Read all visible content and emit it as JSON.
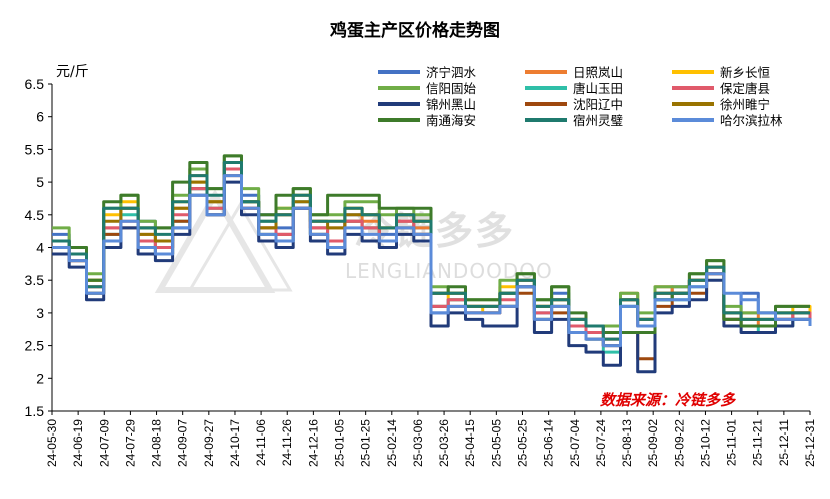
{
  "chart_data": {
    "type": "line",
    "title": "鸡蛋主产区价格走势图",
    "ylabel": "元/斤",
    "ylim": [
      1.5,
      6.5
    ],
    "yticks": [
      "1.5",
      "2",
      "2.5",
      "3",
      "3.5",
      "4",
      "4.5",
      "5",
      "5.5",
      "6",
      "6.5"
    ],
    "x_tick_labels": [
      "24-05-30",
      "24-06-19",
      "24-07-09",
      "24-07-29",
      "24-08-18",
      "24-09-07",
      "24-09-27",
      "24-10-17",
      "24-11-06",
      "24-11-26",
      "24-12-16",
      "25-01-05",
      "25-01-25",
      "25-02-14",
      "25-03-06",
      "25-03-26",
      "25-04-15",
      "25-05-05",
      "25-05-25",
      "25-06-14",
      "25-07-04",
      "25-07-24",
      "25-08-13",
      "25-09-02",
      "25-09-22",
      "25-10-12",
      "25-11-01",
      "25-11-21",
      "25-12-11",
      "25-12-31"
    ],
    "legend_position": "top-right",
    "source_note": "数据来源：冷链多多",
    "watermark": {
      "logo_text": "冷链多多",
      "sub_text": "LENGLIANDOODOO"
    },
    "series": [
      {
        "name": "济宁泗水",
        "color": "#4472C4",
        "values": [
          4.2,
          3.9,
          3.5,
          4.1,
          4.6,
          4.4,
          4.0,
          4.3,
          4.9,
          4.7,
          5.3,
          4.8,
          4.5,
          4.3,
          4.8,
          4.3,
          4.0,
          4.5,
          4.5,
          4.2,
          4.4,
          4.3,
          3.0,
          3.2,
          3.1,
          3.1,
          3.1,
          3.5,
          3.0,
          3.3,
          2.8,
          2.6,
          2.5,
          3.1,
          2.9,
          3.2,
          3.4,
          3.5,
          3.7,
          3.0,
          3.3,
          3.0,
          2.9,
          3.0,
          2.9
        ]
      },
      {
        "name": "日照岚山",
        "color": "#ED7D31",
        "values": [
          4.0,
          3.8,
          3.4,
          4.3,
          4.6,
          4.2,
          4.0,
          4.6,
          5.1,
          4.6,
          5.3,
          4.6,
          4.2,
          4.5,
          4.6,
          4.3,
          4.3,
          4.6,
          4.4,
          4.1,
          4.4,
          4.3,
          3.3,
          3.3,
          3.1,
          3.1,
          3.3,
          3.5,
          3.1,
          3.2,
          2.9,
          2.7,
          2.7,
          3.3,
          2.9,
          3.4,
          3.3,
          3.5,
          3.6,
          2.9,
          3.0,
          2.8,
          2.9,
          3.0,
          2.8
        ]
      },
      {
        "name": "新乡长恒",
        "color": "#FFC000",
        "values": [
          4.1,
          3.9,
          3.5,
          4.5,
          4.7,
          4.3,
          4.1,
          4.7,
          5.0,
          4.7,
          5.3,
          4.7,
          4.3,
          4.6,
          4.8,
          4.4,
          4.4,
          4.6,
          4.5,
          4.3,
          4.5,
          4.4,
          3.3,
          3.2,
          3.1,
          3.0,
          3.4,
          3.4,
          3.1,
          3.1,
          2.8,
          2.7,
          2.6,
          3.2,
          2.9,
          3.3,
          3.3,
          3.5,
          3.7,
          3.0,
          2.9,
          2.9,
          3.0,
          3.1,
          3.0
        ]
      },
      {
        "name": "信阳固始",
        "color": "#70AD47",
        "values": [
          4.3,
          4.0,
          3.6,
          4.6,
          4.8,
          4.4,
          4.3,
          4.8,
          5.2,
          4.9,
          5.4,
          4.9,
          4.4,
          4.6,
          4.9,
          4.5,
          4.5,
          4.7,
          4.7,
          4.5,
          4.6,
          4.5,
          3.4,
          3.3,
          3.2,
          3.2,
          3.5,
          3.6,
          3.2,
          3.4,
          2.9,
          2.8,
          2.8,
          3.3,
          3.0,
          3.4,
          3.4,
          3.6,
          3.8,
          3.1,
          3.0,
          3.0,
          3.1,
          3.1,
          3.1
        ]
      },
      {
        "name": "唐山玉田",
        "color": "#2FBFA8",
        "values": [
          4.0,
          3.8,
          3.3,
          4.2,
          4.5,
          4.1,
          3.9,
          4.4,
          4.9,
          4.6,
          5.2,
          4.6,
          4.2,
          4.1,
          4.7,
          4.2,
          4.1,
          4.4,
          4.3,
          4.1,
          4.3,
          4.2,
          3.1,
          3.2,
          3.0,
          3.0,
          3.1,
          3.4,
          2.9,
          3.1,
          2.7,
          2.6,
          2.4,
          3.1,
          2.8,
          3.2,
          3.2,
          3.4,
          3.6,
          2.9,
          2.8,
          2.7,
          2.8,
          2.9,
          2.8
        ]
      },
      {
        "name": "沈阳辽中",
        "color": "#9E480E",
        "values": [
          4.0,
          3.8,
          3.3,
          4.2,
          4.3,
          4.0,
          3.9,
          4.4,
          4.9,
          4.5,
          5.1,
          4.6,
          4.3,
          4.2,
          4.6,
          4.2,
          4.1,
          4.4,
          4.3,
          4.1,
          4.3,
          4.2,
          3.1,
          3.1,
          3.0,
          3.0,
          3.1,
          3.3,
          2.9,
          3.0,
          2.7,
          2.6,
          2.5,
          2.7,
          2.3,
          3.1,
          3.3,
          3.3,
          3.6,
          2.9,
          2.8,
          2.8,
          2.9,
          2.9,
          2.9
        ]
      },
      {
        "name": "保定唐县",
        "color": "#E05A6B",
        "values": [
          4.0,
          3.8,
          3.4,
          4.3,
          4.4,
          4.1,
          4.0,
          4.5,
          4.9,
          4.6,
          5.2,
          4.6,
          4.3,
          4.2,
          4.6,
          4.3,
          4.1,
          4.4,
          4.3,
          4.1,
          4.4,
          4.2,
          3.1,
          3.2,
          3.0,
          3.0,
          3.2,
          3.4,
          3.0,
          3.1,
          2.8,
          2.7,
          2.6,
          3.2,
          2.8,
          3.3,
          3.3,
          3.5,
          3.6,
          2.9,
          2.8,
          2.8,
          2.9,
          3.0,
          2.9
        ]
      },
      {
        "name": "徐州睢宁",
        "color": "#997300",
        "values": [
          4.1,
          3.9,
          3.5,
          4.4,
          4.6,
          4.2,
          4.1,
          4.6,
          5.0,
          4.7,
          5.3,
          4.7,
          4.3,
          4.5,
          4.7,
          4.4,
          4.3,
          4.5,
          4.5,
          4.3,
          4.5,
          4.4,
          3.3,
          3.3,
          3.1,
          3.1,
          3.3,
          3.5,
          3.1,
          3.2,
          2.9,
          2.8,
          2.7,
          3.2,
          2.9,
          3.3,
          3.3,
          3.5,
          3.7,
          3.0,
          2.9,
          2.9,
          3.0,
          3.0,
          3.0
        ]
      },
      {
        "name": "锦州黑山",
        "color": "#213B7A",
        "values": [
          3.9,
          3.7,
          3.2,
          4.0,
          4.3,
          3.9,
          3.8,
          4.2,
          4.8,
          4.5,
          5.0,
          4.5,
          4.1,
          4.0,
          4.6,
          4.1,
          3.9,
          4.2,
          4.1,
          4.0,
          4.2,
          4.1,
          2.8,
          3.0,
          2.9,
          2.8,
          2.8,
          3.4,
          2.7,
          2.9,
          2.5,
          2.4,
          2.2,
          2.7,
          2.1,
          3.0,
          3.1,
          3.2,
          3.5,
          2.8,
          2.7,
          2.7,
          2.8,
          2.9,
          2.8
        ]
      },
      {
        "name": "南通海安",
        "color": "#3E7B2A",
        "values": [
          4.1,
          4.0,
          3.5,
          4.7,
          4.8,
          4.3,
          4.3,
          5.0,
          5.3,
          4.9,
          5.4,
          4.7,
          4.5,
          4.8,
          4.9,
          4.5,
          4.8,
          4.8,
          4.8,
          4.6,
          4.6,
          4.6,
          3.3,
          3.4,
          3.2,
          3.2,
          3.3,
          3.6,
          3.2,
          3.4,
          3.0,
          2.8,
          2.7,
          2.7,
          2.7,
          3.2,
          3.3,
          3.6,
          3.8,
          2.9,
          2.8,
          2.8,
          3.1,
          3.1,
          3.1
        ]
      },
      {
        "name": "宿州灵璧",
        "color": "#1F7A6E",
        "values": [
          4.1,
          3.9,
          3.4,
          4.6,
          4.6,
          4.3,
          4.2,
          4.7,
          5.1,
          4.8,
          5.3,
          4.7,
          4.4,
          4.5,
          4.8,
          4.4,
          4.4,
          4.6,
          4.5,
          4.3,
          4.5,
          4.4,
          3.3,
          3.3,
          3.1,
          3.1,
          3.3,
          3.5,
          3.1,
          3.2,
          2.9,
          2.8,
          2.6,
          3.2,
          2.9,
          3.3,
          3.3,
          3.5,
          3.7,
          3.0,
          2.9,
          2.9,
          3.0,
          3.0,
          3.0
        ]
      },
      {
        "name": "哈尔滨拉林",
        "color": "#5B8BD9",
        "values": [
          4.0,
          3.8,
          3.3,
          4.1,
          4.4,
          4.0,
          3.9,
          4.3,
          4.8,
          4.5,
          5.1,
          4.6,
          4.2,
          4.1,
          4.6,
          4.2,
          4.0,
          4.3,
          4.2,
          4.1,
          4.3,
          4.2,
          3.0,
          3.1,
          3.0,
          3.0,
          3.1,
          3.4,
          2.9,
          3.1,
          2.7,
          2.6,
          2.5,
          3.1,
          2.8,
          3.2,
          3.2,
          3.4,
          3.6,
          3.3,
          3.2,
          3.0,
          2.9,
          2.9,
          2.8
        ]
      }
    ]
  }
}
